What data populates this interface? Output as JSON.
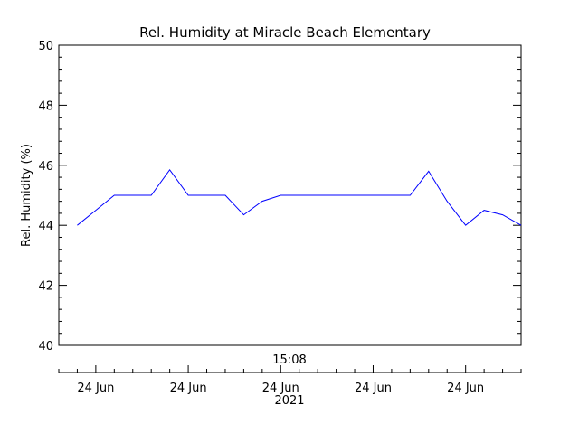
{
  "chart_data": {
    "type": "line",
    "title": "Rel. Humidity at Miracle Beach Elementary",
    "ylabel": "Rel. Humidity (%)",
    "ylim": [
      40,
      50
    ],
    "yticks": [
      "40",
      "42",
      "44",
      "46",
      "48",
      "50"
    ],
    "xlim": [
      0,
      25
    ],
    "time_label": "15:08",
    "xticks": [
      {
        "x": 2,
        "label": "24 Jun"
      },
      {
        "x": 7,
        "label": "24 Jun"
      },
      {
        "x": 12,
        "label": "24 Jun"
      },
      {
        "x": 17,
        "label": "24 Jun"
      },
      {
        "x": 22,
        "label": "24 Jun"
      }
    ],
    "year_label": "2021",
    "grid": false,
    "series": [
      {
        "color": "#0000ff",
        "x": [
          1,
          2,
          3,
          4,
          5,
          6,
          7,
          8,
          9,
          10,
          11,
          12,
          13,
          14,
          15,
          16,
          17,
          18,
          19,
          20,
          21,
          22,
          23,
          24,
          25
        ],
        "values": [
          44.0,
          44.5,
          45.0,
          45.0,
          45.0,
          45.85,
          45.0,
          45.0,
          45.0,
          44.35,
          44.8,
          45.0,
          45.0,
          45.0,
          45.0,
          45.0,
          45.0,
          45.0,
          45.0,
          45.8,
          44.8,
          44.0,
          44.5,
          44.35,
          44.0
        ]
      }
    ]
  }
}
